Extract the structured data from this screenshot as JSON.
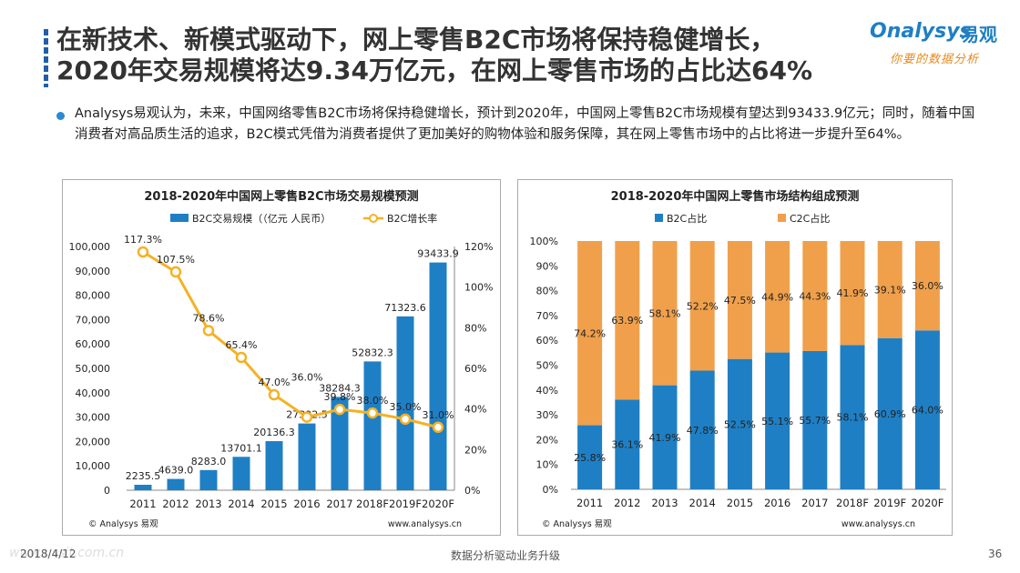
{
  "header": {
    "title_line1": "在新技术、新模式驱动下，网上零售B2C市场将保持稳健增长，",
    "title_line2": "2020年交易规模将达9.34万亿元，在网上零售市场的占比达64%"
  },
  "logo": {
    "brand": "nalysys",
    "brand_initial": "O",
    "brand_cn": "易观",
    "slogan": "你要的数据分析"
  },
  "bullet": {
    "text": "Analysys易观认为，未来，中国网络零售B2C市场将保持稳健增长，预计到2020年，中国网上零售B2C市场规模有望达到93433.9亿元；同时，随着中国消费者对高品质生活的追求，B2C模式凭借为消费者提供了更加美好的购物体验和服务保障，其在网上零售市场中的占比将进一步提升至64%。"
  },
  "footer": {
    "date": "2018/4/12",
    "center": "数据分析驱动业务升级",
    "page": "36",
    "watermark": "www.ussit.com.cn"
  },
  "colors": {
    "blue": "#1f7fc4",
    "orange": "#f0a030",
    "orange_bar": "#f0a04b",
    "line": "#f5b125"
  },
  "chart_data": [
    {
      "type": "bar",
      "title": "2018-2020年中国网上零售B2C市场交易规模预测",
      "categories": [
        "2011",
        "2012",
        "2013",
        "2014",
        "2015",
        "2016",
        "2017",
        "2018F",
        "2019F",
        "2020F"
      ],
      "series": [
        {
          "name": "B2C交易规模（（亿元 人民币）",
          "type": "bar",
          "values": [
            2235.5,
            4639.0,
            8283.0,
            13701.1,
            20136.3,
            27392.5,
            38284.3,
            52832.3,
            71323.6,
            93433.9
          ],
          "labels": [
            "2235.5",
            "4639.0",
            "8283.0",
            "13701.1",
            "20136.3",
            "27392.5",
            "38284.3",
            "52832.3",
            "71323.6",
            "93433.9"
          ]
        },
        {
          "name": "B2C增长率",
          "type": "line",
          "axis": "right",
          "values": [
            117.3,
            107.5,
            78.6,
            65.4,
            47.0,
            36.0,
            39.8,
            38.0,
            35.0,
            31.0
          ],
          "labels": [
            "117.3%",
            "107.5%",
            "78.6%",
            "65.4%",
            "47.0%",
            "36.0%",
            "39.8%",
            "38.0%",
            "35.0%",
            "31.0%"
          ]
        }
      ],
      "y_left": {
        "ylim": [
          0,
          100000
        ],
        "ticks": [
          "0",
          "10,000",
          "20,000",
          "30,000",
          "40,000",
          "50,000",
          "60,000",
          "70,000",
          "80,000",
          "90,000",
          "100,000"
        ]
      },
      "y_right": {
        "ylim": [
          0,
          120
        ],
        "ticks": [
          "0%",
          "20%",
          "40%",
          "60%",
          "80%",
          "100%",
          "120%"
        ]
      },
      "source": "© Analysys 易观",
      "url": "www.analysys.cn",
      "legend": "top"
    },
    {
      "type": "bar",
      "stacked": true,
      "title": "2018-2020年中国网上零售市场结构组成预测",
      "categories": [
        "2011",
        "2012",
        "2013",
        "2014",
        "2015",
        "2016",
        "2017",
        "2018F",
        "2019F",
        "2020F"
      ],
      "series": [
        {
          "name": "B2C占比",
          "values": [
            25.8,
            36.1,
            41.9,
            47.8,
            52.5,
            55.1,
            55.7,
            58.1,
            60.9,
            64.0
          ],
          "labels": [
            "25.8%",
            "36.1%",
            "41.9%",
            "47.8%",
            "52.5%",
            "55.1%",
            "55.7%",
            "58.1%",
            "60.9%",
            "64.0%"
          ]
        },
        {
          "name": "C2C占比",
          "values": [
            74.2,
            63.9,
            58.1,
            52.2,
            47.5,
            44.9,
            44.3,
            41.9,
            39.1,
            36.0
          ],
          "labels": [
            "74.2%",
            "63.9%",
            "58.1%",
            "52.2%",
            "47.5%",
            "44.9%",
            "44.3%",
            "41.9%",
            "39.1%",
            "36.0%"
          ]
        }
      ],
      "ylim": [
        0,
        100
      ],
      "y_ticks": [
        "0%",
        "10%",
        "20%",
        "30%",
        "40%",
        "50%",
        "60%",
        "70%",
        "80%",
        "90%",
        "100%"
      ],
      "source": "© Analysys 易观",
      "url": "www.analysys.cn",
      "legend": "top"
    }
  ]
}
